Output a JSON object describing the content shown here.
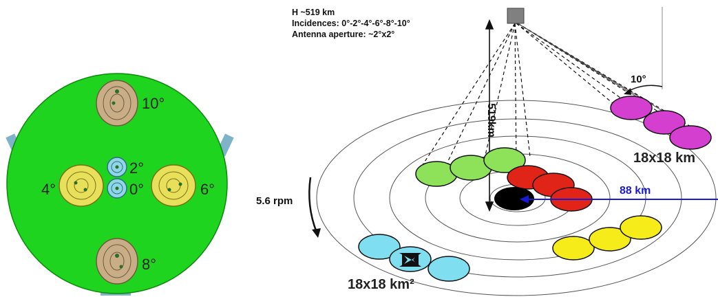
{
  "info": {
    "altitude": "H ~519 km",
    "incidences": "Incidences: 0°-2°-4°-6°-8°-10°",
    "aperture": "Antenna aperture: ~2°x2°"
  },
  "antenna_panel": {
    "labels": {
      "deg10": "10°",
      "deg2": "2°",
      "deg4": "4°",
      "deg0": "0°",
      "deg6": "6°",
      "deg8": "8°"
    }
  },
  "geometry": {
    "height_label": "519km",
    "angle_label": "10°",
    "rotation_label": "5.6 rpm",
    "radius_label": "88 km",
    "footprint_label_top": "18x18 km",
    "footprint_label_bottom": "18x18 km²"
  },
  "colors": {
    "disk": "#1fd41f",
    "nadir": "#000000",
    "ring2": "#e02418",
    "ring4": "#8ee25a",
    "ring6": "#f5ec1a",
    "ring8": "#7fdff0",
    "ring10": "#d43fd0",
    "radius_arrow": "#1a1ad4"
  }
}
